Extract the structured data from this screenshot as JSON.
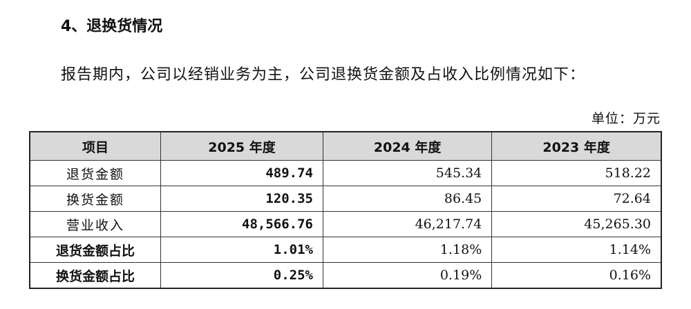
{
  "heading": "4、退换货情况",
  "paragraph": "报告期内，公司以经销业务为主，公司退换货金额及占收入比例情况如下：",
  "unit": "单位：万元",
  "table": {
    "header": [
      "项目",
      "2025 年度",
      "2024 年度",
      "2023 年度"
    ],
    "rows": [
      [
        "退货金额",
        "489.74",
        "545.34",
        "518.22"
      ],
      [
        "换货金额",
        "120.35",
        "86.45",
        "72.64"
      ],
      [
        "营业收入",
        "48,566.76",
        "46,217.74",
        "45,265.30"
      ],
      [
        "退货金额占比",
        "1.01%",
        "1.18%",
        "1.14%"
      ],
      [
        "换货金额占比",
        "0.25%",
        "0.19%",
        "0.16%"
      ]
    ]
  }
}
